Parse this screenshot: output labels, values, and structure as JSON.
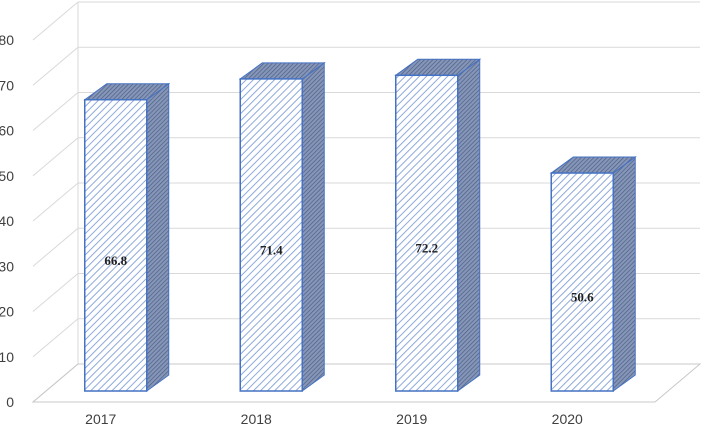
{
  "chart_data": {
    "type": "bar",
    "style": "3d-hatched-columns",
    "categories": [
      "2017",
      "2018",
      "2019",
      "2020"
    ],
    "values": [
      66.8,
      71.4,
      72.2,
      50.6
    ],
    "data_labels": [
      "66.8",
      "71.4",
      "72.2",
      "50.6"
    ],
    "title": "",
    "xlabel": "",
    "ylabel": "",
    "ylim": [
      0,
      80
    ],
    "yticks": [
      0,
      10,
      20,
      30,
      40,
      50,
      60,
      70,
      80
    ],
    "grid": true,
    "legend": "none",
    "colors": {
      "bar_front_hatch": "#8ea9db",
      "bar_outline": "#4472c4",
      "bar_side": "#5b6f96",
      "bar_top": "#7d8fb3",
      "gridline": "#d9d9d9",
      "axis_text": "#404040"
    }
  }
}
